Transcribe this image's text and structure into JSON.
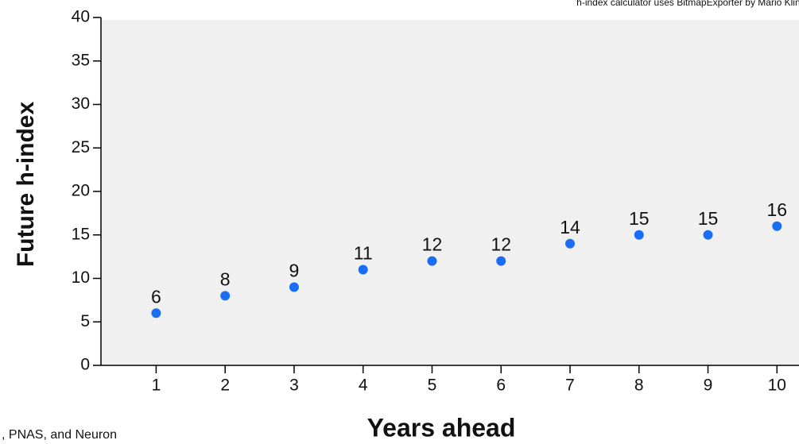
{
  "chart_data": {
    "type": "scatter",
    "credit": "h-index calculator uses BitmapExporter by Mario Klingemann",
    "footnote": ", PNAS, and Neuron",
    "xlabel": "Years ahead",
    "ylabel": "Future h-index",
    "x": [
      1,
      2,
      3,
      4,
      5,
      6,
      7,
      8,
      9,
      10
    ],
    "values": [
      6,
      8,
      9,
      11,
      12,
      12,
      14,
      15,
      15,
      16
    ],
    "color": "#1a6ef5",
    "xlim": [
      0.2,
      10.4
    ],
    "xticks": [
      1,
      2,
      3,
      4,
      5,
      6,
      7,
      8,
      9,
      10
    ],
    "ylim": [
      0,
      40
    ],
    "yticks": [
      0,
      5,
      10,
      15,
      20,
      25,
      30,
      35,
      40
    ]
  }
}
